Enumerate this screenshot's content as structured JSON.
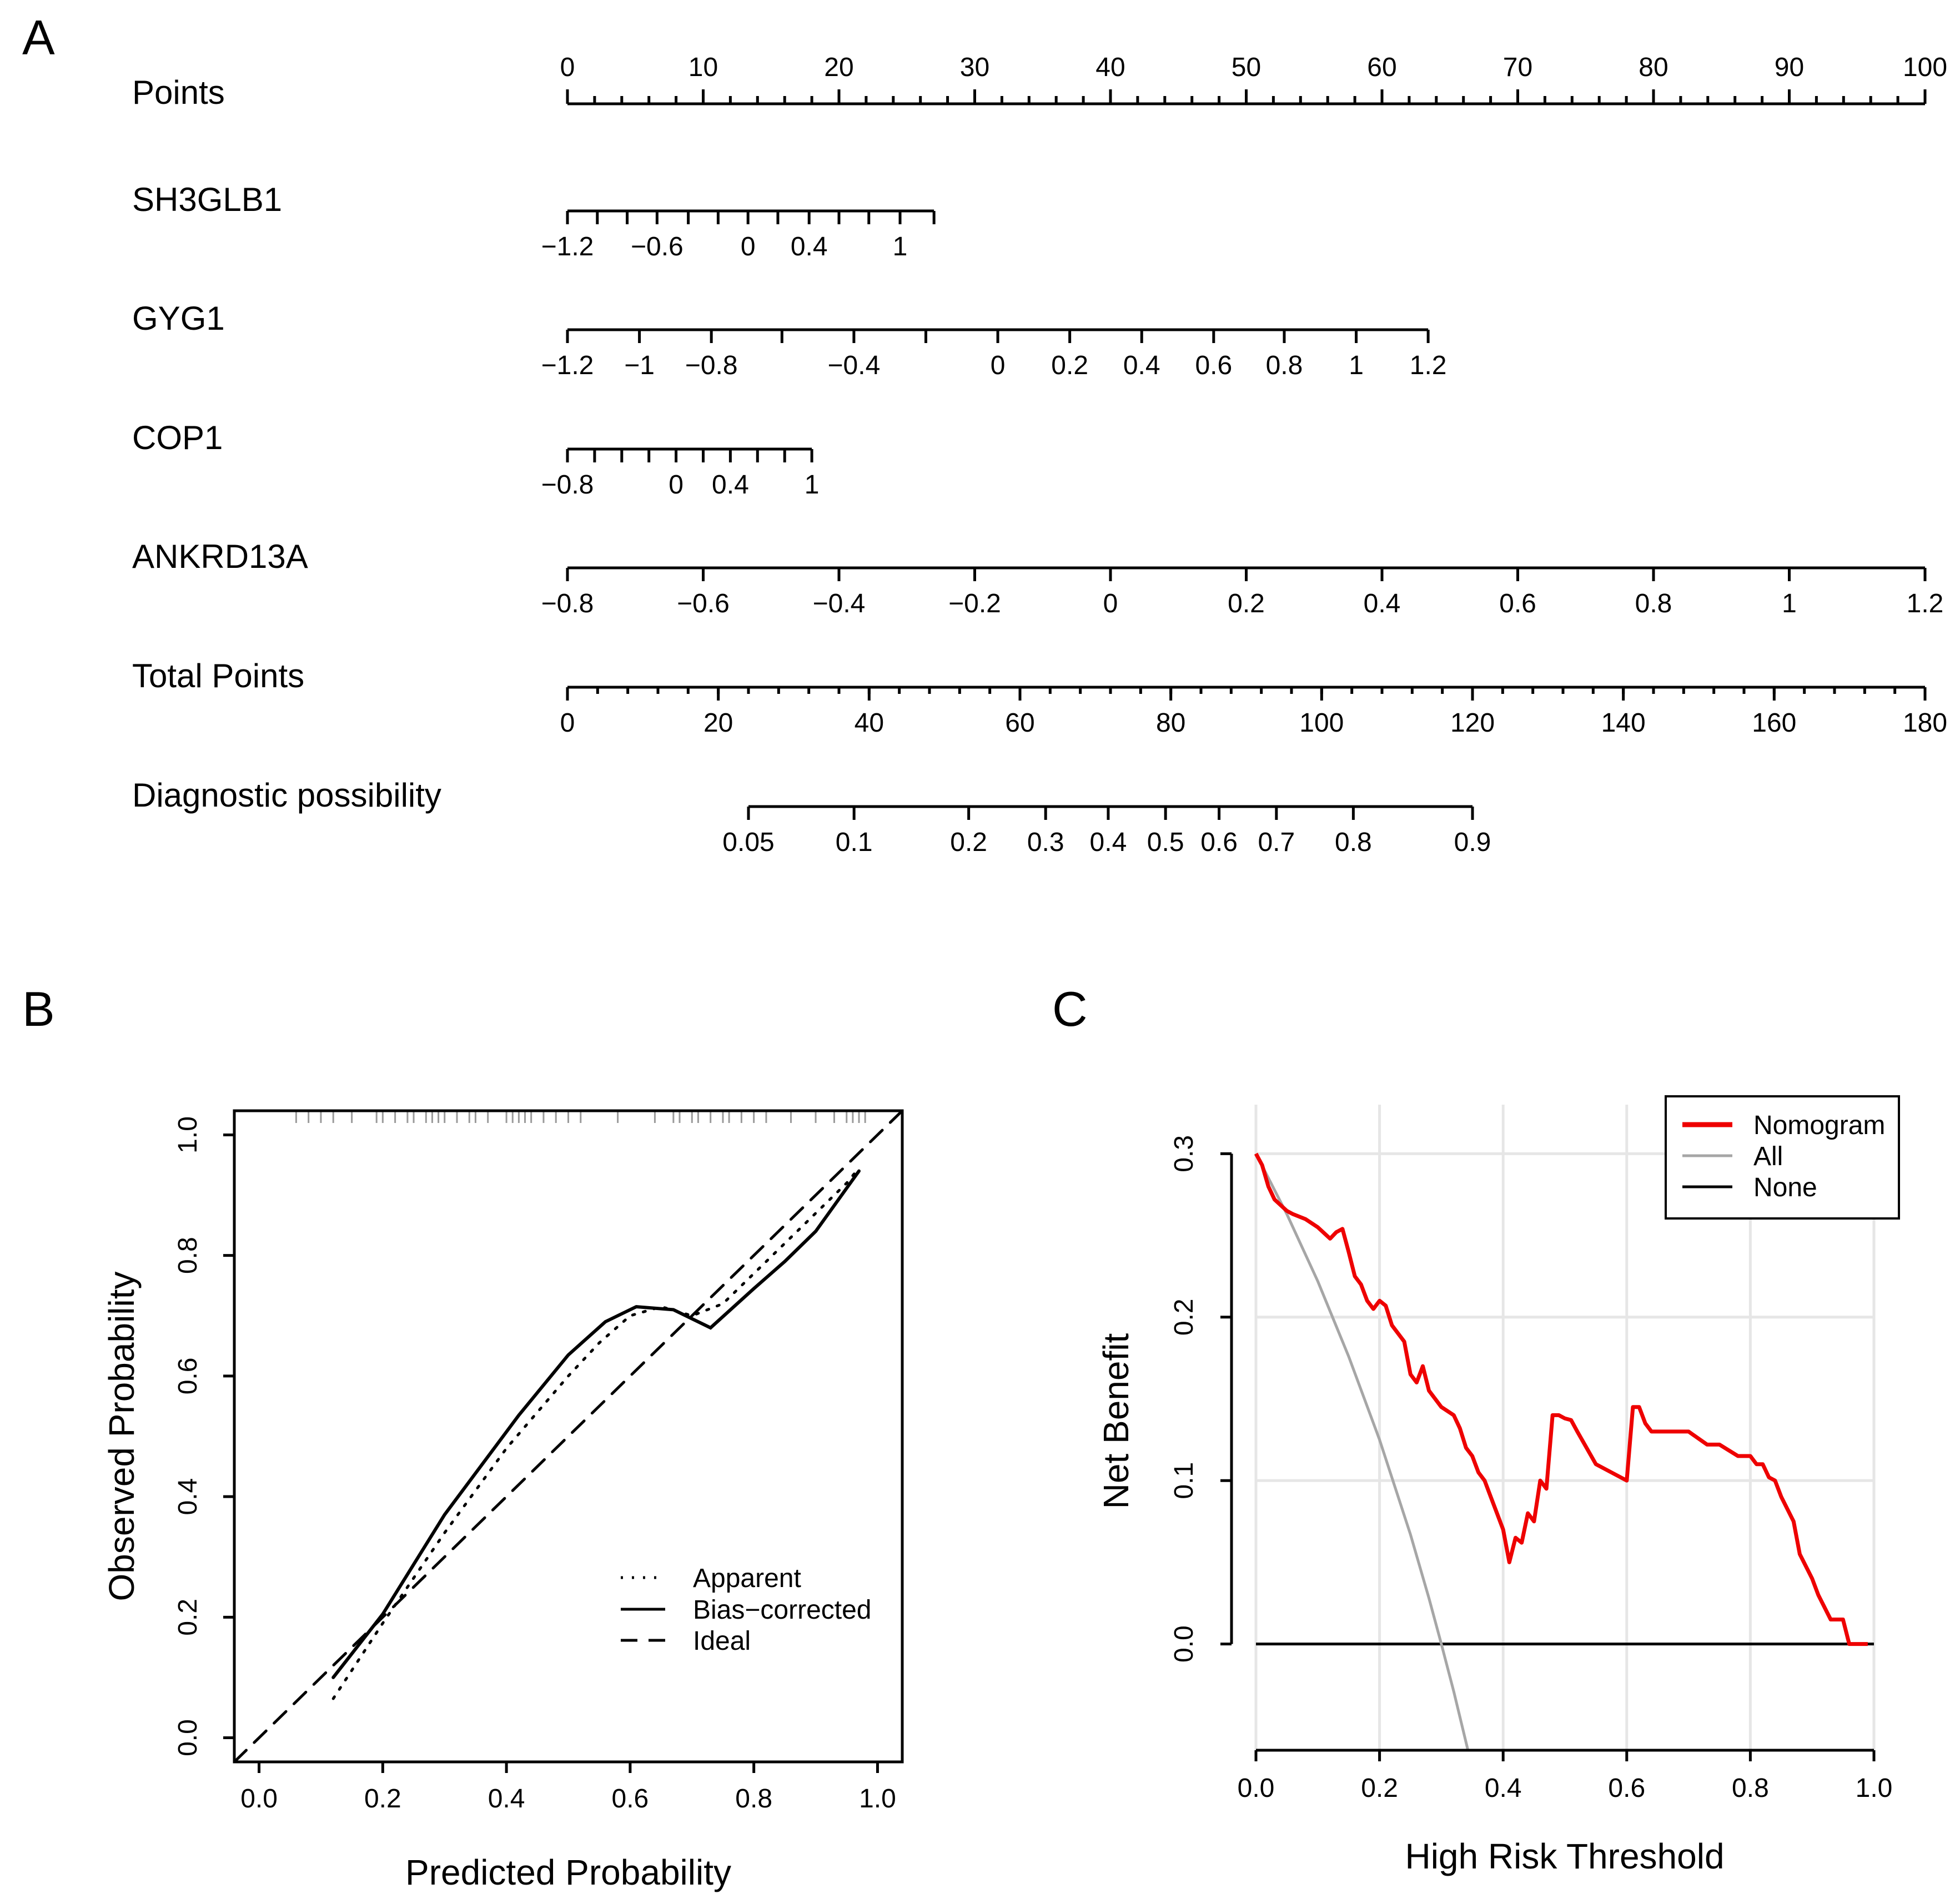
{
  "panel_labels": {
    "a": "A",
    "b": "B",
    "c": "C"
  },
  "colors": {
    "nomogram": "#ee0000",
    "all": "#a6a6a6",
    "none": "#000000",
    "grid": "#e6e6e6",
    "ink": "#000000"
  },
  "chart_data": [
    {
      "type": "nomogram",
      "panel": "A",
      "points_max": 100,
      "rows": [
        {
          "label": "Points",
          "kind": "points",
          "range": [
            0,
            100
          ],
          "labels": [
            "0",
            "10",
            "20",
            "30",
            "40",
            "50",
            "60",
            "70",
            "80",
            "90",
            "100"
          ],
          "label_values": [
            0,
            10,
            20,
            30,
            40,
            50,
            60,
            70,
            80,
            90,
            100
          ],
          "minor_step": 2
        },
        {
          "label": "SH3GLB1",
          "kind": "variable",
          "points_range": [
            0,
            27
          ],
          "labels": [
            "−1.2",
            "−0.6",
            "0",
            "0.4",
            "1"
          ],
          "label_points": [
            0,
            6.6,
            13.3,
            17.8,
            24.5
          ],
          "minor_points": [
            0,
            2.2,
            4.4,
            6.6,
            8.9,
            11.1,
            13.3,
            15.5,
            17.8,
            20.0,
            22.2,
            24.5,
            27
          ]
        },
        {
          "label": "GYG1",
          "kind": "variable",
          "points_range": [
            0,
            63.4
          ],
          "labels": [
            "−1.2",
            "−1",
            "−0.8",
            "−0.4",
            "0",
            "0.2",
            "0.4",
            "0.6",
            "0.8",
            "1",
            "1.2"
          ],
          "label_points": [
            0,
            5.3,
            10.6,
            21.1,
            31.7,
            37.0,
            42.3,
            47.6,
            52.8,
            58.1,
            63.4
          ],
          "minor_points": [
            0,
            5.3,
            10.6,
            15.8,
            21.1,
            26.4,
            31.7,
            37.0,
            42.3,
            47.6,
            52.8,
            58.1,
            63.4
          ]
        },
        {
          "label": "COP1",
          "kind": "variable",
          "points_range": [
            0,
            18
          ],
          "labels": [
            "−0.8",
            "0",
            "0.4",
            "1"
          ],
          "label_points": [
            0,
            8.0,
            12.0,
            18.0
          ],
          "minor_points": [
            0,
            2,
            4,
            6,
            8,
            10,
            12,
            14,
            16,
            18
          ]
        },
        {
          "label": "ANKRD13A",
          "kind": "variable",
          "points_range": [
            0,
            100
          ],
          "labels": [
            "−0.8",
            "−0.6",
            "−0.4",
            "−0.2",
            "0",
            "0.2",
            "0.4",
            "0.6",
            "0.8",
            "1",
            "1.2"
          ],
          "label_points": [
            0,
            10,
            20,
            30,
            40,
            50,
            60,
            70,
            80,
            90,
            100
          ],
          "minor_points": [
            0,
            10,
            20,
            30,
            40,
            50,
            60,
            70,
            80,
            90,
            100
          ]
        },
        {
          "label": "Total Points",
          "kind": "total",
          "range": [
            0,
            180
          ],
          "labels": [
            "0",
            "20",
            "40",
            "60",
            "80",
            "100",
            "120",
            "140",
            "160",
            "180"
          ],
          "label_values": [
            0,
            20,
            40,
            60,
            80,
            100,
            120,
            140,
            160,
            180
          ],
          "minor_step": 4
        },
        {
          "label": "Diagnostic possibility",
          "kind": "probability",
          "total_range": [
            0,
            180
          ],
          "labels": [
            "0.05",
            "0.1",
            "0.2",
            "0.3",
            "0.4",
            "0.5",
            "0.6",
            "0.7",
            "0.8",
            "0.9"
          ],
          "label_totals": [
            24,
            38,
            53.2,
            63.4,
            71.7,
            79.3,
            86.4,
            94.0,
            104.2,
            120
          ]
        }
      ]
    },
    {
      "type": "line",
      "panel": "B",
      "xlabel": "Predicted Probability",
      "ylabel": "Observed Probability",
      "xlim": [
        -0.04,
        1.04
      ],
      "ylim": [
        -0.04,
        1.04
      ],
      "xticks": [
        0.0,
        0.2,
        0.4,
        0.6,
        0.8,
        1.0
      ],
      "xtick_labels": [
        "0.0",
        "0.2",
        "0.4",
        "0.6",
        "0.8",
        "1.0"
      ],
      "yticks": [
        0.0,
        0.2,
        0.4,
        0.6,
        0.8,
        1.0
      ],
      "ytick_labels": [
        "0.0",
        "0.2",
        "0.4",
        "0.6",
        "0.8",
        "1.0"
      ],
      "series": [
        {
          "name": "Apparent",
          "style": "dotted",
          "x": [
            0.12,
            0.2,
            0.3,
            0.4,
            0.5,
            0.55,
            0.6,
            0.65,
            0.7,
            0.75,
            0.8,
            0.85,
            0.9,
            0.95,
            0.97
          ],
          "y": [
            0.065,
            0.19,
            0.34,
            0.48,
            0.6,
            0.655,
            0.7,
            0.715,
            0.7,
            0.72,
            0.77,
            0.82,
            0.87,
            0.92,
            0.945
          ]
        },
        {
          "name": "Bias-corrected",
          "style": "solid",
          "x": [
            0.12,
            0.2,
            0.3,
            0.42,
            0.5,
            0.56,
            0.61,
            0.67,
            0.73,
            0.8,
            0.85,
            0.9,
            0.97
          ],
          "y": [
            0.1,
            0.205,
            0.37,
            0.535,
            0.635,
            0.69,
            0.715,
            0.71,
            0.68,
            0.745,
            0.79,
            0.84,
            0.94
          ]
        },
        {
          "name": "Ideal",
          "style": "dashed",
          "x": [
            -0.04,
            1.04
          ],
          "y": [
            -0.04,
            1.04
          ]
        }
      ],
      "rug": [
        0.06,
        0.08,
        0.1,
        0.12,
        0.15,
        0.19,
        0.2,
        0.22,
        0.24,
        0.25,
        0.27,
        0.28,
        0.29,
        0.3,
        0.32,
        0.34,
        0.35,
        0.37,
        0.4,
        0.41,
        0.42,
        0.43,
        0.44,
        0.46,
        0.48,
        0.5,
        0.52,
        0.58,
        0.64,
        0.67,
        0.68,
        0.7,
        0.71,
        0.73,
        0.75,
        0.76,
        0.78,
        0.8,
        0.82,
        0.86,
        0.9,
        0.93,
        0.95,
        0.96,
        0.97,
        0.98
      ],
      "legend": {
        "position": "bottom-right",
        "entries": [
          "Apparent",
          "Bias−corrected",
          "Ideal"
        ]
      }
    },
    {
      "type": "line",
      "panel": "C",
      "xlabel": "High Risk Threshold",
      "ylabel": "Net Benefit",
      "xlim": [
        0,
        1.0
      ],
      "ylim": [
        -0.065,
        0.33
      ],
      "xticks": [
        0.0,
        0.2,
        0.4,
        0.6,
        0.8,
        1.0
      ],
      "xtick_labels": [
        "0.0",
        "0.2",
        "0.4",
        "0.6",
        "0.8",
        "1.0"
      ],
      "yticks": [
        0.0,
        0.1,
        0.2,
        0.3
      ],
      "ytick_labels": [
        "0.0",
        "0.1",
        "0.2",
        "0.3"
      ],
      "grid": true,
      "series": [
        {
          "name": "Nomogram",
          "color": "#ee0000",
          "x": [
            0,
            0.01,
            0.02,
            0.03,
            0.05,
            0.06,
            0.08,
            0.1,
            0.12,
            0.13,
            0.14,
            0.15,
            0.16,
            0.17,
            0.18,
            0.19,
            0.2,
            0.21,
            0.22,
            0.24,
            0.25,
            0.26,
            0.27,
            0.28,
            0.3,
            0.32,
            0.33,
            0.34,
            0.35,
            0.36,
            0.37,
            0.38,
            0.39,
            0.4,
            0.41,
            0.42,
            0.43,
            0.44,
            0.45,
            0.46,
            0.47,
            0.48,
            0.49,
            0.5,
            0.51,
            0.52,
            0.55,
            0.6,
            0.61,
            0.62,
            0.63,
            0.64,
            0.66,
            0.7,
            0.73,
            0.75,
            0.78,
            0.79,
            0.8,
            0.81,
            0.82,
            0.83,
            0.84,
            0.85,
            0.87,
            0.88,
            0.9,
            0.91,
            0.93,
            0.94,
            0.95,
            0.96,
            0.97,
            0.99
          ],
          "y": [
            0.3,
            0.293,
            0.28,
            0.272,
            0.265,
            0.263,
            0.26,
            0.255,
            0.248,
            0.252,
            0.254,
            0.24,
            0.225,
            0.22,
            0.21,
            0.205,
            0.21,
            0.207,
            0.195,
            0.185,
            0.165,
            0.16,
            0.17,
            0.155,
            0.145,
            0.14,
            0.132,
            0.12,
            0.115,
            0.105,
            0.1,
            0.09,
            0.08,
            0.07,
            0.05,
            0.065,
            0.062,
            0.08,
            0.075,
            0.1,
            0.095,
            0.14,
            0.14,
            0.138,
            0.137,
            0.13,
            0.11,
            0.1,
            0.145,
            0.145,
            0.135,
            0.13,
            0.13,
            0.13,
            0.122,
            0.122,
            0.115,
            0.115,
            0.115,
            0.11,
            0.11,
            0.102,
            0.1,
            0.09,
            0.075,
            0.055,
            0.04,
            0.03,
            0.015,
            0.015,
            0.015,
            0.0,
            0.0,
            0.0
          ]
        },
        {
          "name": "All",
          "color": "#a6a6a6",
          "x": [
            0,
            0.05,
            0.1,
            0.15,
            0.2,
            0.25,
            0.28,
            0.3,
            0.32,
            0.343
          ],
          "y": [
            0.3,
            0.263,
            0.222,
            0.176,
            0.125,
            0.067,
            0.028,
            0.0,
            -0.029,
            -0.065
          ]
        },
        {
          "name": "None",
          "color": "#000000",
          "x": [
            0,
            1.0
          ],
          "y": [
            0,
            0
          ]
        }
      ],
      "legend": {
        "position": "top-right",
        "entries": [
          "Nomogram",
          "All",
          "None"
        ]
      }
    }
  ]
}
